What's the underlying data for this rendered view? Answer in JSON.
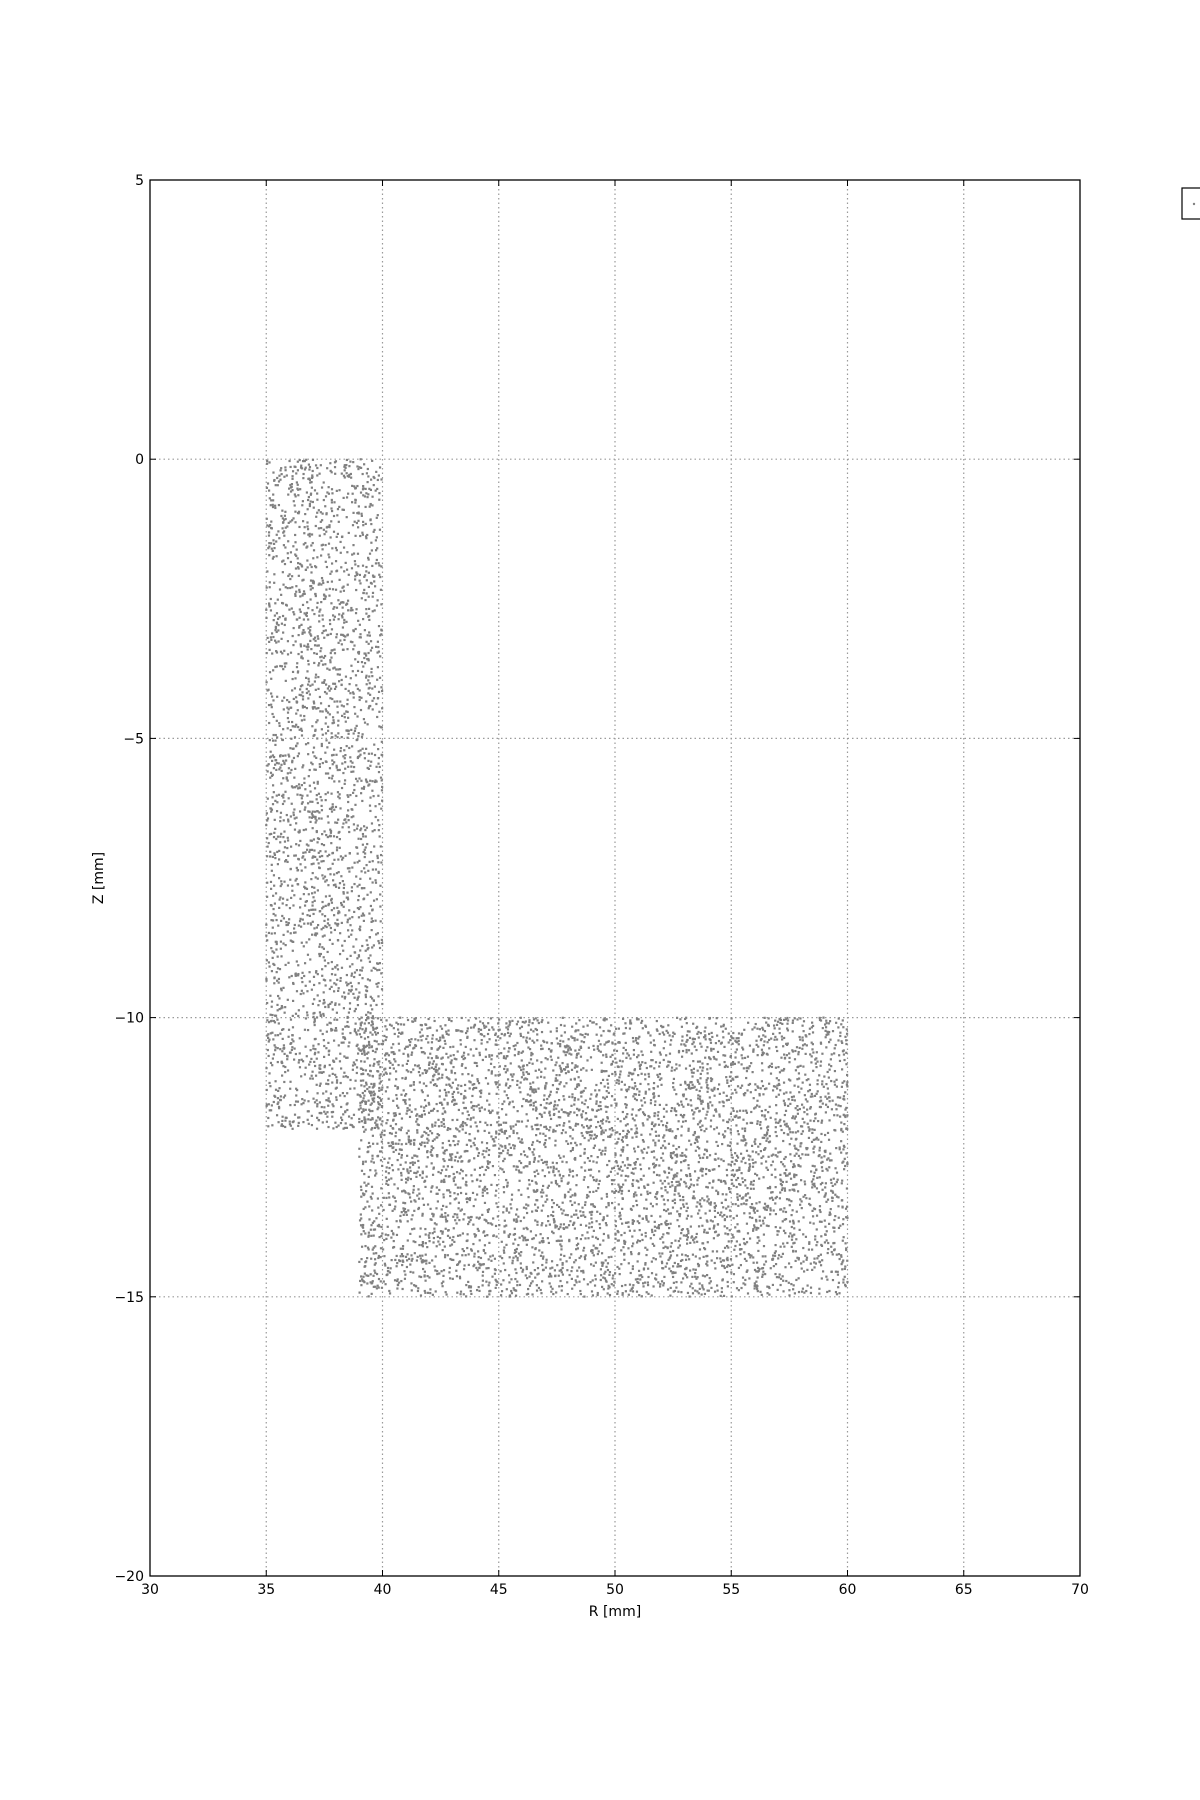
{
  "chart_data": {
    "type": "scatter",
    "title": "",
    "xlabel": "R [mm]",
    "ylabel": "Z [mm]",
    "xlim": [
      30,
      70
    ],
    "ylim": [
      -20,
      5
    ],
    "xticks": [
      "30",
      "35",
      "40",
      "45",
      "50",
      "55",
      "60",
      "65",
      "70"
    ],
    "yticks": [
      "−20",
      "−15",
      "−10",
      "−5",
      "0",
      "5"
    ],
    "grid": true,
    "legend": {
      "placement": "outside-top-right",
      "entries": [
        {
          "marker": "point",
          "label": ""
        }
      ]
    },
    "point_color": "#808080",
    "regions": [
      {
        "r_min": 35,
        "r_max": 40,
        "z_min": -12,
        "z_max": 0,
        "density_points": 2600
      },
      {
        "r_min": 39,
        "r_max": 60,
        "z_min": -15,
        "z_max": -10,
        "density_points": 5200
      },
      {
        "r_min": 35,
        "r_max": 39,
        "z_min": -12,
        "z_max": -10,
        "density_points": 0
      }
    ]
  }
}
